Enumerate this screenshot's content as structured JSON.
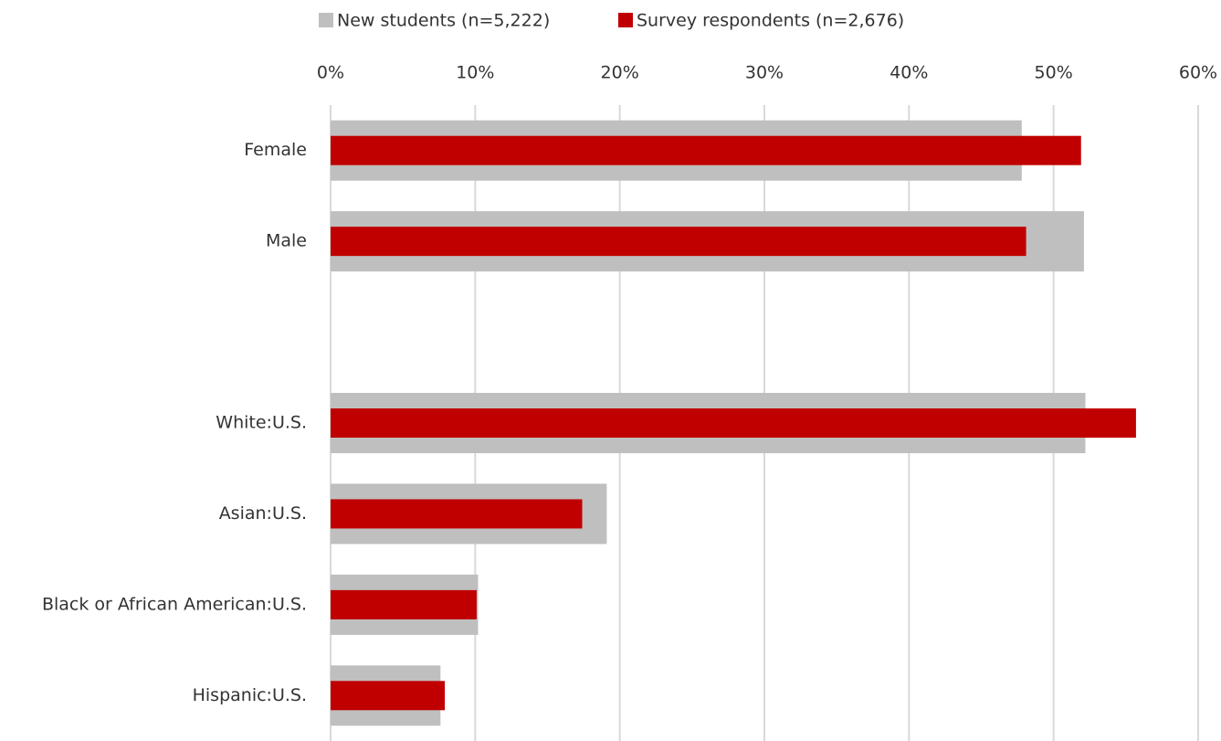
{
  "chart_data": {
    "type": "bar",
    "orientation": "horizontal",
    "categories": [
      "Female",
      "Male",
      null,
      "White:U.S.",
      "Asian:U.S.",
      "Black or African American:U.S.",
      "Hispanic:U.S."
    ],
    "series": [
      {
        "name": "New students (n=5,222)",
        "color": "#bfbfbf",
        "values": [
          47.8,
          52.1,
          null,
          52.2,
          19.1,
          10.2,
          7.6
        ]
      },
      {
        "name": "Survey respondents (n=2,676)",
        "color": "#c00000",
        "values": [
          51.9,
          48.1,
          null,
          55.7,
          17.4,
          10.1,
          7.9
        ]
      }
    ],
    "xlim": [
      0,
      60
    ],
    "xticks": [
      {
        "value": 0,
        "label": "0%"
      },
      {
        "value": 10,
        "label": "10%"
      },
      {
        "value": 20,
        "label": "20%"
      },
      {
        "value": 30,
        "label": "30%"
      },
      {
        "value": 40,
        "label": "40%"
      },
      {
        "value": 50,
        "label": "50%"
      },
      {
        "value": 60,
        "label": "60%"
      }
    ],
    "grid": true,
    "legend": "top"
  }
}
